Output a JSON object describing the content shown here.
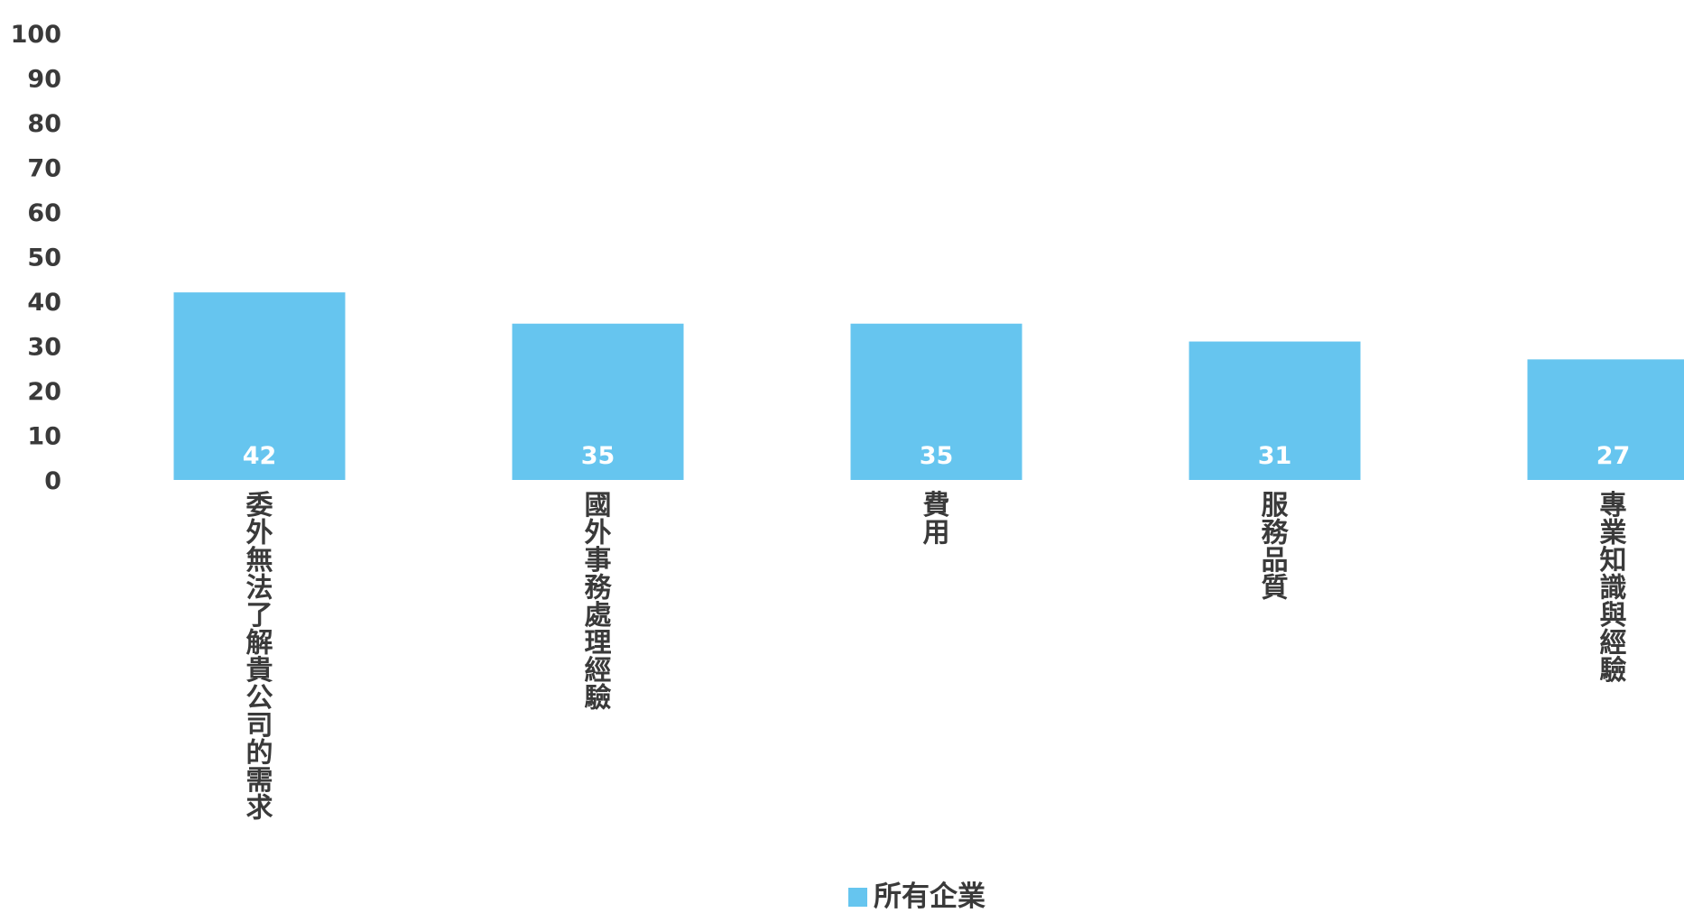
{
  "chart_data": {
    "type": "bar",
    "categories": [
      "委外無法了解貴公司的需求",
      "國外事務處理經驗",
      "費用",
      "服務品質",
      "專業知識與經驗"
    ],
    "series": [
      {
        "name": "所有企業",
        "values": [
          42,
          35,
          35,
          31,
          27
        ],
        "color": "#66c5ef"
      }
    ],
    "ylim": [
      0,
      100
    ],
    "yticks": [
      0,
      10,
      20,
      30,
      40,
      50,
      60,
      70,
      80,
      90,
      100
    ],
    "grid": false,
    "legend_position": "bottom",
    "category_label_orientation": "vertical",
    "value_labels": "inside-bottom"
  }
}
